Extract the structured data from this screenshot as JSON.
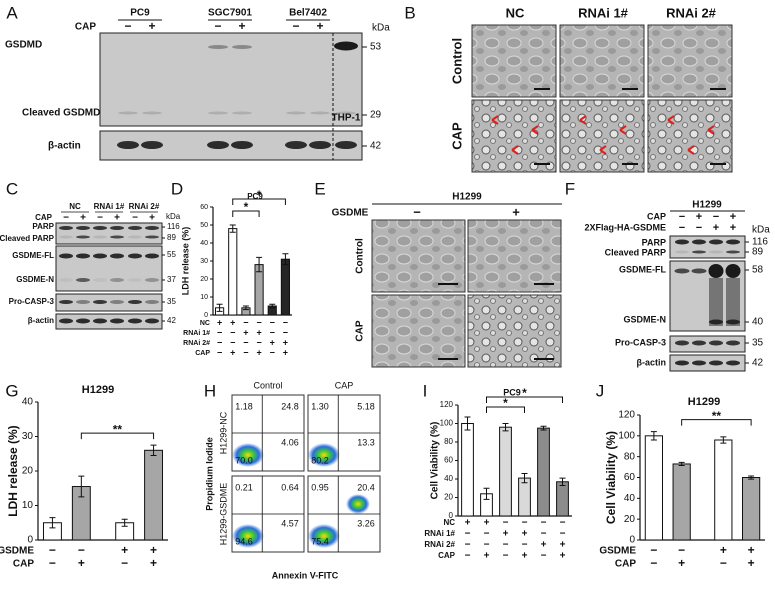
{
  "panel_labels": [
    "A",
    "B",
    "C",
    "D",
    "E",
    "F",
    "G",
    "H",
    "I",
    "J"
  ],
  "panel_a": {
    "cell_lines": [
      "PC9",
      "SGC7901",
      "Bel7402"
    ],
    "control_line": "THP-1",
    "treatment": "CAP",
    "marks": [
      "−",
      "+",
      "−",
      "+",
      "−",
      "+"
    ],
    "unit": "kDa",
    "bands": [
      {
        "name": "GSDMD",
        "kda": 53
      },
      {
        "name": "Cleaved GSDMD",
        "kda": 29
      },
      {
        "name": "β-actin",
        "kda": 42
      }
    ]
  },
  "panel_b": {
    "columns": [
      "NC",
      "RNAi 1#",
      "RNAi 2#"
    ],
    "rows": [
      "Control",
      "CAP"
    ]
  },
  "panel_c": {
    "groups": [
      "NC",
      "RNAi 1#",
      "RNAi 2#"
    ],
    "treatment": "CAP",
    "marks": [
      "−",
      "+",
      "−",
      "+",
      "−",
      "+"
    ],
    "unit": "kDa",
    "bands": [
      "PARP",
      "Cleaved PARP",
      "GSDME-FL",
      "GSDME-N",
      "Pro-CASP-3",
      "β-actin"
    ],
    "markers": [
      116,
      89,
      55,
      37,
      35,
      42
    ]
  },
  "panel_e": {
    "title": "H1299",
    "factor": "GSDME",
    "columns": [
      "−",
      "+"
    ],
    "rows": [
      "Control",
      "CAP"
    ]
  },
  "panel_f": {
    "title": "H1299",
    "conditions": [
      {
        "label": "CAP",
        "marks": [
          "−",
          "+",
          "−",
          "+"
        ]
      },
      {
        "label": "2XFlag-HA-GSDME",
        "marks": [
          "−",
          "−",
          "+",
          "+"
        ]
      }
    ],
    "unit": "kDa",
    "bands": [
      "PARP",
      "Cleaved PARP",
      "GSDME-FL",
      "GSDME-N",
      "Pro-CASP-3",
      "β-actin"
    ],
    "markers": [
      116,
      89,
      58,
      40,
      35,
      42
    ]
  },
  "panel_h": {
    "columns": [
      "Control",
      "CAP"
    ],
    "rows": [
      "H1299-NC",
      "H1299-GSDME"
    ],
    "y_label": "Propidium Iodide",
    "x_label": "Annexin V-FITC",
    "quadrants": [
      [
        [
          "1.18",
          "24.8",
          "70.0",
          "4.06"
        ],
        [
          "1.30",
          "5.18",
          "80.2",
          "13.3"
        ]
      ],
      [
        [
          "0.21",
          "0.64",
          "94.6",
          "4.57"
        ],
        [
          "0.95",
          "20.4",
          "75.4",
          "3.26"
        ]
      ]
    ]
  },
  "chart_data": [
    {
      "type": "bar",
      "title": "PC9",
      "y_label": "LDH release (%)",
      "ylim": [
        0,
        60
      ],
      "yticks": [
        0,
        10,
        20,
        30,
        40,
        50,
        60
      ],
      "values": [
        4,
        48,
        4,
        28,
        5,
        31
      ],
      "errors": [
        2,
        2,
        1,
        4,
        1,
        3
      ],
      "colors": [
        "#ffffff",
        "#ffffff",
        "#a6a6a6",
        "#a6a6a6",
        "#262626",
        "#262626"
      ],
      "conditions": [
        {
          "label": "NC",
          "marks": [
            "+",
            "+",
            "−",
            "−",
            "−",
            "−"
          ]
        },
        {
          "label": "RNAi 1#",
          "marks": [
            "−",
            "−",
            "+",
            "+",
            "−",
            "−"
          ]
        },
        {
          "label": "RNAi 2#",
          "marks": [
            "−",
            "−",
            "−",
            "−",
            "+",
            "+"
          ]
        },
        {
          "label": "CAP",
          "marks": [
            "−",
            "+",
            "−",
            "+",
            "−",
            "+"
          ]
        }
      ],
      "annotations": [
        "*",
        "*"
      ]
    },
    {
      "type": "bar",
      "title": "H1299",
      "y_label": "LDH release (%)",
      "ylim": [
        0,
        40
      ],
      "yticks": [
        0,
        10,
        20,
        30,
        40
      ],
      "values": [
        5,
        15.5,
        5,
        26
      ],
      "errors": [
        1.5,
        3,
        1,
        1.5
      ],
      "colors": [
        "#ffffff",
        "#a6a6a6",
        "#ffffff",
        "#a6a6a6"
      ],
      "conditions": [
        {
          "label": "GSDME",
          "marks": [
            "−",
            "−",
            "+",
            "+"
          ]
        },
        {
          "label": "CAP",
          "marks": [
            "−",
            "+",
            "−",
            "+"
          ]
        }
      ],
      "annotations": [
        "**"
      ]
    },
    {
      "type": "bar",
      "title": "PC9",
      "y_label": "Cell Viability (%)",
      "ylim": [
        0,
        120
      ],
      "yticks": [
        0,
        20,
        40,
        60,
        80,
        100,
        120
      ],
      "values": [
        100,
        24,
        96,
        41,
        95,
        37
      ],
      "errors": [
        7,
        6,
        4,
        5,
        2,
        4
      ],
      "colors": [
        "#ffffff",
        "#ffffff",
        "#d9d9d9",
        "#d9d9d9",
        "#8c8c8c",
        "#8c8c8c"
      ],
      "conditions": [
        {
          "label": "NC",
          "marks": [
            "+",
            "+",
            "−",
            "−",
            "−",
            "−"
          ]
        },
        {
          "label": "RNAi 1#",
          "marks": [
            "−",
            "−",
            "+",
            "+",
            "−",
            "−"
          ]
        },
        {
          "label": "RNAi 2#",
          "marks": [
            "−",
            "−",
            "−",
            "−",
            "+",
            "+"
          ]
        },
        {
          "label": "CAP",
          "marks": [
            "−",
            "+",
            "−",
            "+",
            "−",
            "+"
          ]
        }
      ],
      "annotations": [
        "*",
        "*"
      ]
    },
    {
      "type": "bar",
      "title": "H1299",
      "y_label": "Cell Viability (%)",
      "ylim": [
        0,
        120
      ],
      "yticks": [
        0,
        20,
        40,
        60,
        80,
        100,
        120
      ],
      "values": [
        100,
        73,
        96,
        60
      ],
      "errors": [
        4,
        1.5,
        3,
        1.5
      ],
      "colors": [
        "#ffffff",
        "#a6a6a6",
        "#ffffff",
        "#a6a6a6"
      ],
      "conditions": [
        {
          "label": "GSDME",
          "marks": [
            "−",
            "−",
            "+",
            "+"
          ]
        },
        {
          "label": "CAP",
          "marks": [
            "−",
            "+",
            "−",
            "+"
          ]
        }
      ],
      "annotations": [
        "**"
      ]
    }
  ]
}
